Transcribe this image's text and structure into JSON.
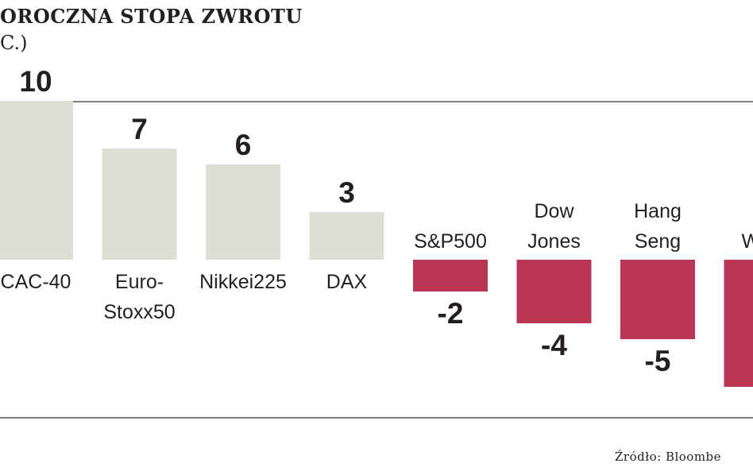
{
  "title": "OROCZNA STOPA ZWROTU",
  "unit_label": "C.)",
  "source": "Źródło: Bloombe",
  "colors": {
    "positive": "#deded4",
    "negative": "#ba3552",
    "axis": "#555555",
    "text": "#231f20"
  },
  "chart_data": {
    "type": "bar",
    "categories": [
      [
        "CAC-40"
      ],
      [
        "Euro-",
        "Stoxx50"
      ],
      [
        "Nikkei225"
      ],
      [
        "DAX"
      ],
      [
        "S&P500"
      ],
      [
        "Dow",
        "Jones"
      ],
      [
        "Hang",
        "Seng"
      ],
      [
        "WIG"
      ]
    ],
    "values": [
      10,
      7,
      6,
      3,
      -2,
      -4,
      -5,
      -8
    ],
    "value_labels": [
      "10",
      "7",
      "6",
      "3",
      "-2",
      "-4",
      "-5",
      "-"
    ],
    "ylim": [
      -10,
      10
    ],
    "grid": false
  }
}
